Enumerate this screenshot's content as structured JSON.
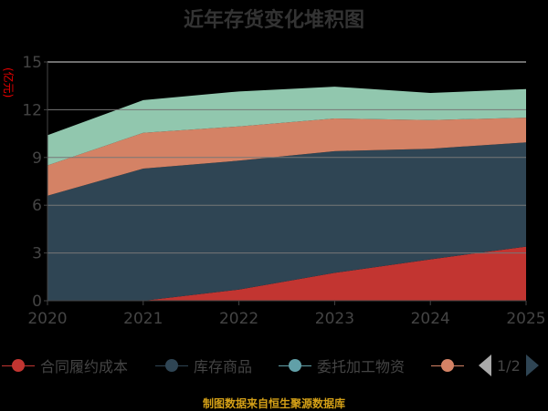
{
  "chart_data": {
    "type": "area",
    "stacked": true,
    "title": "近年存货变化堆积图",
    "ylabel": "(亿元)",
    "xlabel": "",
    "categories": [
      "2020",
      "2021",
      "2022",
      "2023",
      "2024",
      "2025"
    ],
    "ylim": [
      0,
      15
    ],
    "yticks": [
      "0",
      "3",
      "6",
      "9",
      "12",
      "15"
    ],
    "grid": true,
    "series": [
      {
        "name": "合同履约成本",
        "color": "#c23531",
        "values": [
          0,
          0,
          0.7,
          1.75,
          2.6,
          3.4
        ]
      },
      {
        "name": "库存商品",
        "color": "#2f4554",
        "values": [
          6.6,
          8.3,
          8.1,
          7.65,
          6.95,
          6.55
        ]
      },
      {
        "name": "委托加工物资",
        "color": "#61a0a8",
        "values": [
          0,
          0,
          0,
          0,
          0,
          0
        ]
      },
      {
        "name": "",
        "color": "#d48265",
        "values": [
          1.9,
          2.25,
          2.15,
          2.05,
          1.8,
          1.55
        ]
      },
      {
        "name": "",
        "color": "#91c7ae",
        "values": [
          1.9,
          2.05,
          2.2,
          2.0,
          1.7,
          1.8
        ]
      }
    ],
    "legend": {
      "placement": "bottom",
      "page": "1/2"
    }
  },
  "source": "制图数据来自恒生聚源数据库"
}
